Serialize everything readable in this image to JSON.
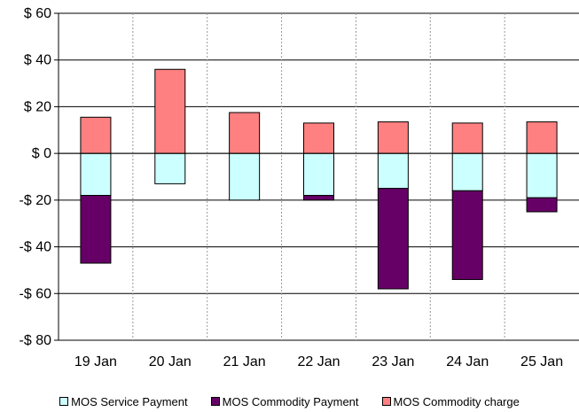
{
  "chart_data": {
    "type": "bar",
    "stacked": true,
    "categories": [
      "19 Jan",
      "20 Jan",
      "21 Jan",
      "22 Jan",
      "23 Jan",
      "24 Jan",
      "25 Jan"
    ],
    "ylim": [
      -80,
      60
    ],
    "yticks": [
      60,
      40,
      20,
      0,
      -20,
      -40,
      -60,
      -80
    ],
    "ytick_labels": [
      "$ 60",
      "$ 40",
      "$ 20",
      "$ 0",
      "-$ 20",
      "-$ 40",
      "-$ 60",
      "-$ 80"
    ],
    "grid": true,
    "legend_position": "bottom",
    "series": [
      {
        "name": "MOS Service Payment",
        "color": "#ccffff",
        "values": [
          -18,
          -13,
          -20,
          -18,
          -15,
          -16,
          -19
        ]
      },
      {
        "name": "MOS Commodity Payment",
        "color": "#660066",
        "values": [
          -29,
          0,
          0,
          -2,
          -43,
          -38,
          -6
        ]
      },
      {
        "name": "MOS Commodity charge",
        "color": "#ff8080",
        "values": [
          15.5,
          36,
          17.5,
          13,
          13.5,
          13,
          13.5
        ]
      }
    ]
  }
}
